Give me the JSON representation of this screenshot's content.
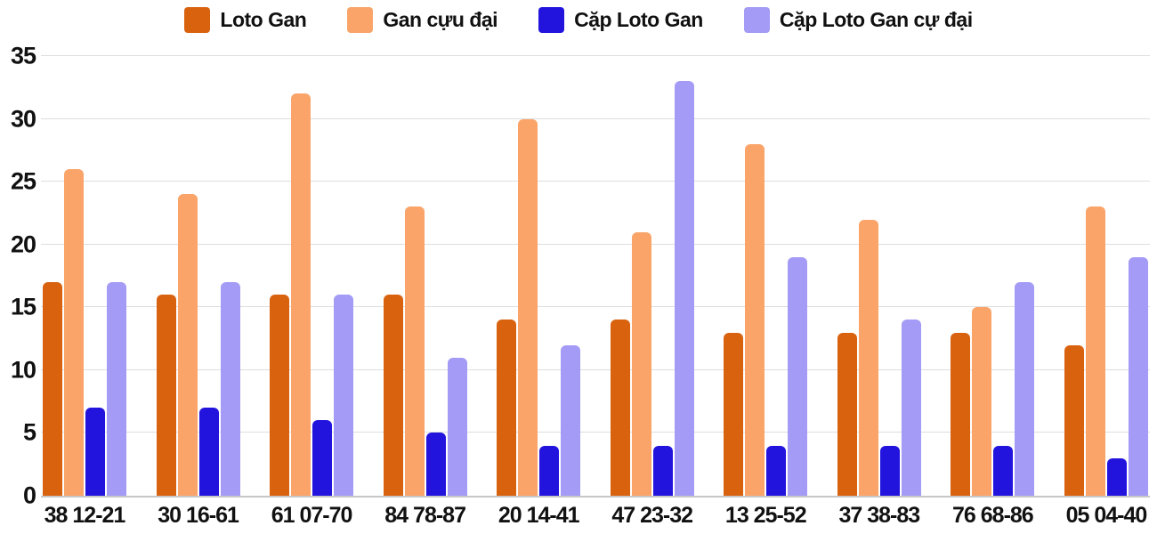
{
  "chart_data": {
    "type": "bar",
    "title": "",
    "xlabel": "",
    "ylabel": "",
    "categories": [
      "38 12-21",
      "30 16-61",
      "61 07-70",
      "84 78-87",
      "20 14-41",
      "47 23-32",
      "13 25-52",
      "37 38-83",
      "76 68-86",
      "05 04-40"
    ],
    "series": [
      {
        "name": "Loto Gan",
        "color": "#d9620f",
        "values": [
          17,
          16,
          16,
          16,
          14,
          14,
          13,
          13,
          13,
          12
        ]
      },
      {
        "name": "Gan cựu đại",
        "color": "#faa469",
        "values": [
          26,
          24,
          32,
          23,
          30,
          21,
          28,
          22,
          15,
          23
        ]
      },
      {
        "name": "Cặp Loto Gan",
        "color": "#2213dd",
        "values": [
          7,
          7,
          6,
          5,
          4,
          4,
          4,
          4,
          4,
          3
        ]
      },
      {
        "name": "Cặp Loto Gan cự đại",
        "color": "#a39bf5",
        "values": [
          17,
          17,
          16,
          11,
          12,
          33,
          19,
          14,
          17,
          19
        ]
      }
    ],
    "ylim": [
      0,
      35
    ],
    "yticks": [
      0,
      5,
      10,
      15,
      20,
      25,
      30,
      35
    ],
    "grid": true,
    "legend_position": "top",
    "background": "#ffffff",
    "gridline_color": "#dedede",
    "axis_line_color": "#c7c7c7"
  }
}
